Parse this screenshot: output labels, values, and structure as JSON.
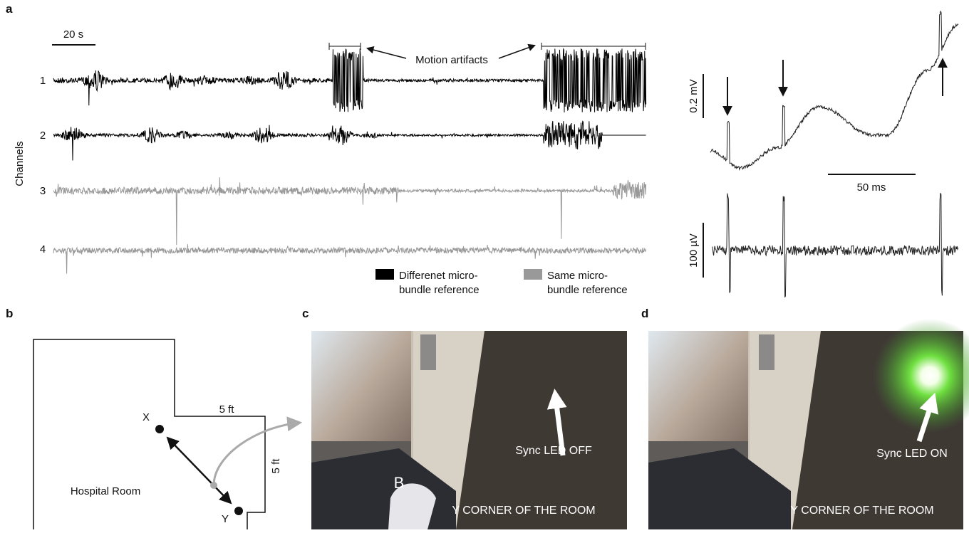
{
  "panels": {
    "a": {
      "label": "a",
      "scale_bar": "20 s",
      "annotation": "Motion artifacts",
      "y_axis_label": "Channels",
      "channels": [
        "1",
        "2",
        "3",
        "4"
      ],
      "legend": [
        {
          "color": "#000000",
          "label_lines": [
            "Differenet micro-",
            "bundle reference"
          ]
        },
        {
          "color": "#999999",
          "label_lines": [
            "Same micro-",
            "bundle reference"
          ]
        }
      ],
      "inset": {
        "voltage_bar_top": "0.2 mV",
        "time_bar": "50 ms",
        "voltage_bar_bottom": "100 µV"
      }
    },
    "b": {
      "label": "b",
      "wall_1": "5 ft",
      "wall_2": "5 ft",
      "point_x": "X",
      "point_y": "Y",
      "room": "Hospital Room"
    },
    "c": {
      "label": "c",
      "caption": "Sync LED OFF",
      "corner": "Y CORNER OF THE ROOM",
      "mark": "B"
    },
    "d": {
      "label": "d",
      "caption": "Sync LED ON",
      "corner": "Y CORNER OF THE ROOM"
    }
  }
}
